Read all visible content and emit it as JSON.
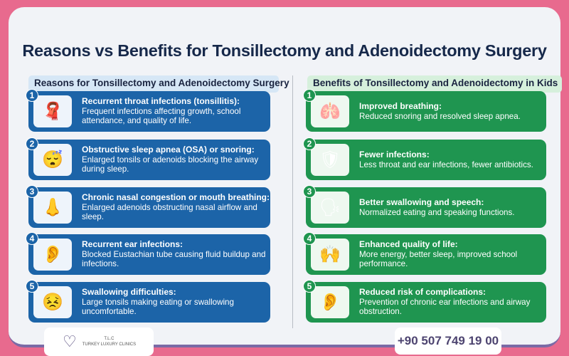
{
  "title": "Reasons vs Benefits for Tonsillectomy and Adenoidectomy Surgery",
  "colors": {
    "background": "#e86a8e",
    "reasons": "#1c64a8",
    "benefits": "#1f9550",
    "title": "#16284a"
  },
  "reasons": {
    "header": "Reasons for Tonsillectomy and Adenoidectomy Surgery",
    "items": [
      {
        "num": "1",
        "icon": "throat-icon",
        "title": "Recurrent throat infections (tonsillitis):",
        "text": "Frequent infections affecting growth, school attendance, and quality of life."
      },
      {
        "num": "2",
        "icon": "sleeping-child-icon",
        "title": "Obstructive sleep apnea (OSA) or snoring:",
        "text": "Enlarged tonsils or adenoids blocking the airway during sleep."
      },
      {
        "num": "3",
        "icon": "nose-icon",
        "title": "Chronic nasal congestion or mouth breathing:",
        "text": "Enlarged adenoids obstructing nasal airflow and sleep."
      },
      {
        "num": "4",
        "icon": "ear-icon",
        "title": "Recurrent ear infections:",
        "text": "Blocked Eustachian tube causing fluid buildup and infections."
      },
      {
        "num": "5",
        "icon": "swallowing-icon",
        "title": "Swallowing difficulties:",
        "text": "Large tonsils making eating or swallowing uncomfortable."
      }
    ]
  },
  "benefits": {
    "header": "Benefits of Tonsillectomy and Adenoidectomy in Kids",
    "items": [
      {
        "num": "1",
        "icon": "lungs-breathing-icon",
        "title": "Improved breathing:",
        "text": "Reduced snoring and resolved sleep apnea."
      },
      {
        "num": "2",
        "icon": "shield-medicine-icon",
        "title": "Fewer infections:",
        "text": "Less throat and ear infections, fewer antibiotics."
      },
      {
        "num": "3",
        "icon": "speech-icon",
        "title": "Better swallowing and speech:",
        "text": "Normalized eating and speaking functions."
      },
      {
        "num": "4",
        "icon": "happy-child-icon",
        "title": "Enhanced quality of life:",
        "text": "More energy, better sleep, improved school performance."
      },
      {
        "num": "5",
        "icon": "ear-check-icon",
        "title": "Reduced risk of complications:",
        "text": "Prevention of chronic ear infections and airway obstruction."
      }
    ]
  },
  "footer": {
    "logo_abbr": "T.L.C",
    "logo_name": "TURKEY LUXURY CLINICS",
    "phone": "+90 507 749 19 00"
  }
}
